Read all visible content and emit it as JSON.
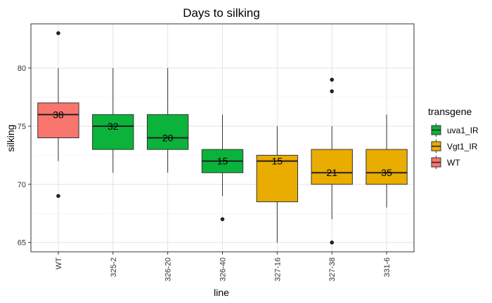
{
  "chart_data": {
    "type": "boxplot",
    "title": "Days to silking",
    "xlabel": "line",
    "ylabel": "silking",
    "ylim": [
      64.2,
      83.8
    ],
    "yticks": [
      65,
      70,
      75,
      80
    ],
    "grid": true,
    "legend": {
      "title": "transgene",
      "placement": "right",
      "entries": [
        {
          "name": "uva1_IR",
          "color": "#0BB33A"
        },
        {
          "name": "Vgt1_IR",
          "color": "#E9AC00"
        },
        {
          "name": "WT",
          "color": "#F8766D"
        }
      ]
    },
    "boxes": [
      {
        "category": "WT",
        "transgene": "WT",
        "whisker_low": 72,
        "q1": 74,
        "median": 76,
        "q3": 77,
        "whisker_high": 80,
        "outliers": [
          83,
          69
        ],
        "n": "38"
      },
      {
        "category": "325-2",
        "transgene": "uva1_IR",
        "whisker_low": 71,
        "q1": 73,
        "median": 75,
        "q3": 76,
        "whisker_high": 80,
        "outliers": [],
        "n": "32"
      },
      {
        "category": "326-20",
        "transgene": "uva1_IR",
        "whisker_low": 71,
        "q1": 73,
        "median": 74,
        "q3": 76,
        "whisker_high": 80,
        "outliers": [],
        "n": "20"
      },
      {
        "category": "326-40",
        "transgene": "uva1_IR",
        "whisker_low": 69,
        "q1": 71,
        "median": 72,
        "q3": 73,
        "whisker_high": 76,
        "outliers": [
          67
        ],
        "n": "15"
      },
      {
        "category": "327-16",
        "transgene": "Vgt1_IR",
        "whisker_low": 65,
        "q1": 68.5,
        "median": 72,
        "q3": 72.5,
        "whisker_high": 75,
        "outliers": [],
        "n": "15"
      },
      {
        "category": "327-38",
        "transgene": "Vgt1_IR",
        "whisker_low": 67,
        "q1": 70,
        "median": 71,
        "q3": 73,
        "whisker_high": 75,
        "outliers": [
          79,
          78,
          65
        ],
        "n": "21"
      },
      {
        "category": "331-6",
        "transgene": "Vgt1_IR",
        "whisker_low": 68,
        "q1": 70,
        "median": 71,
        "q3": 73,
        "whisker_high": 76,
        "outliers": [],
        "n": "35"
      }
    ]
  }
}
